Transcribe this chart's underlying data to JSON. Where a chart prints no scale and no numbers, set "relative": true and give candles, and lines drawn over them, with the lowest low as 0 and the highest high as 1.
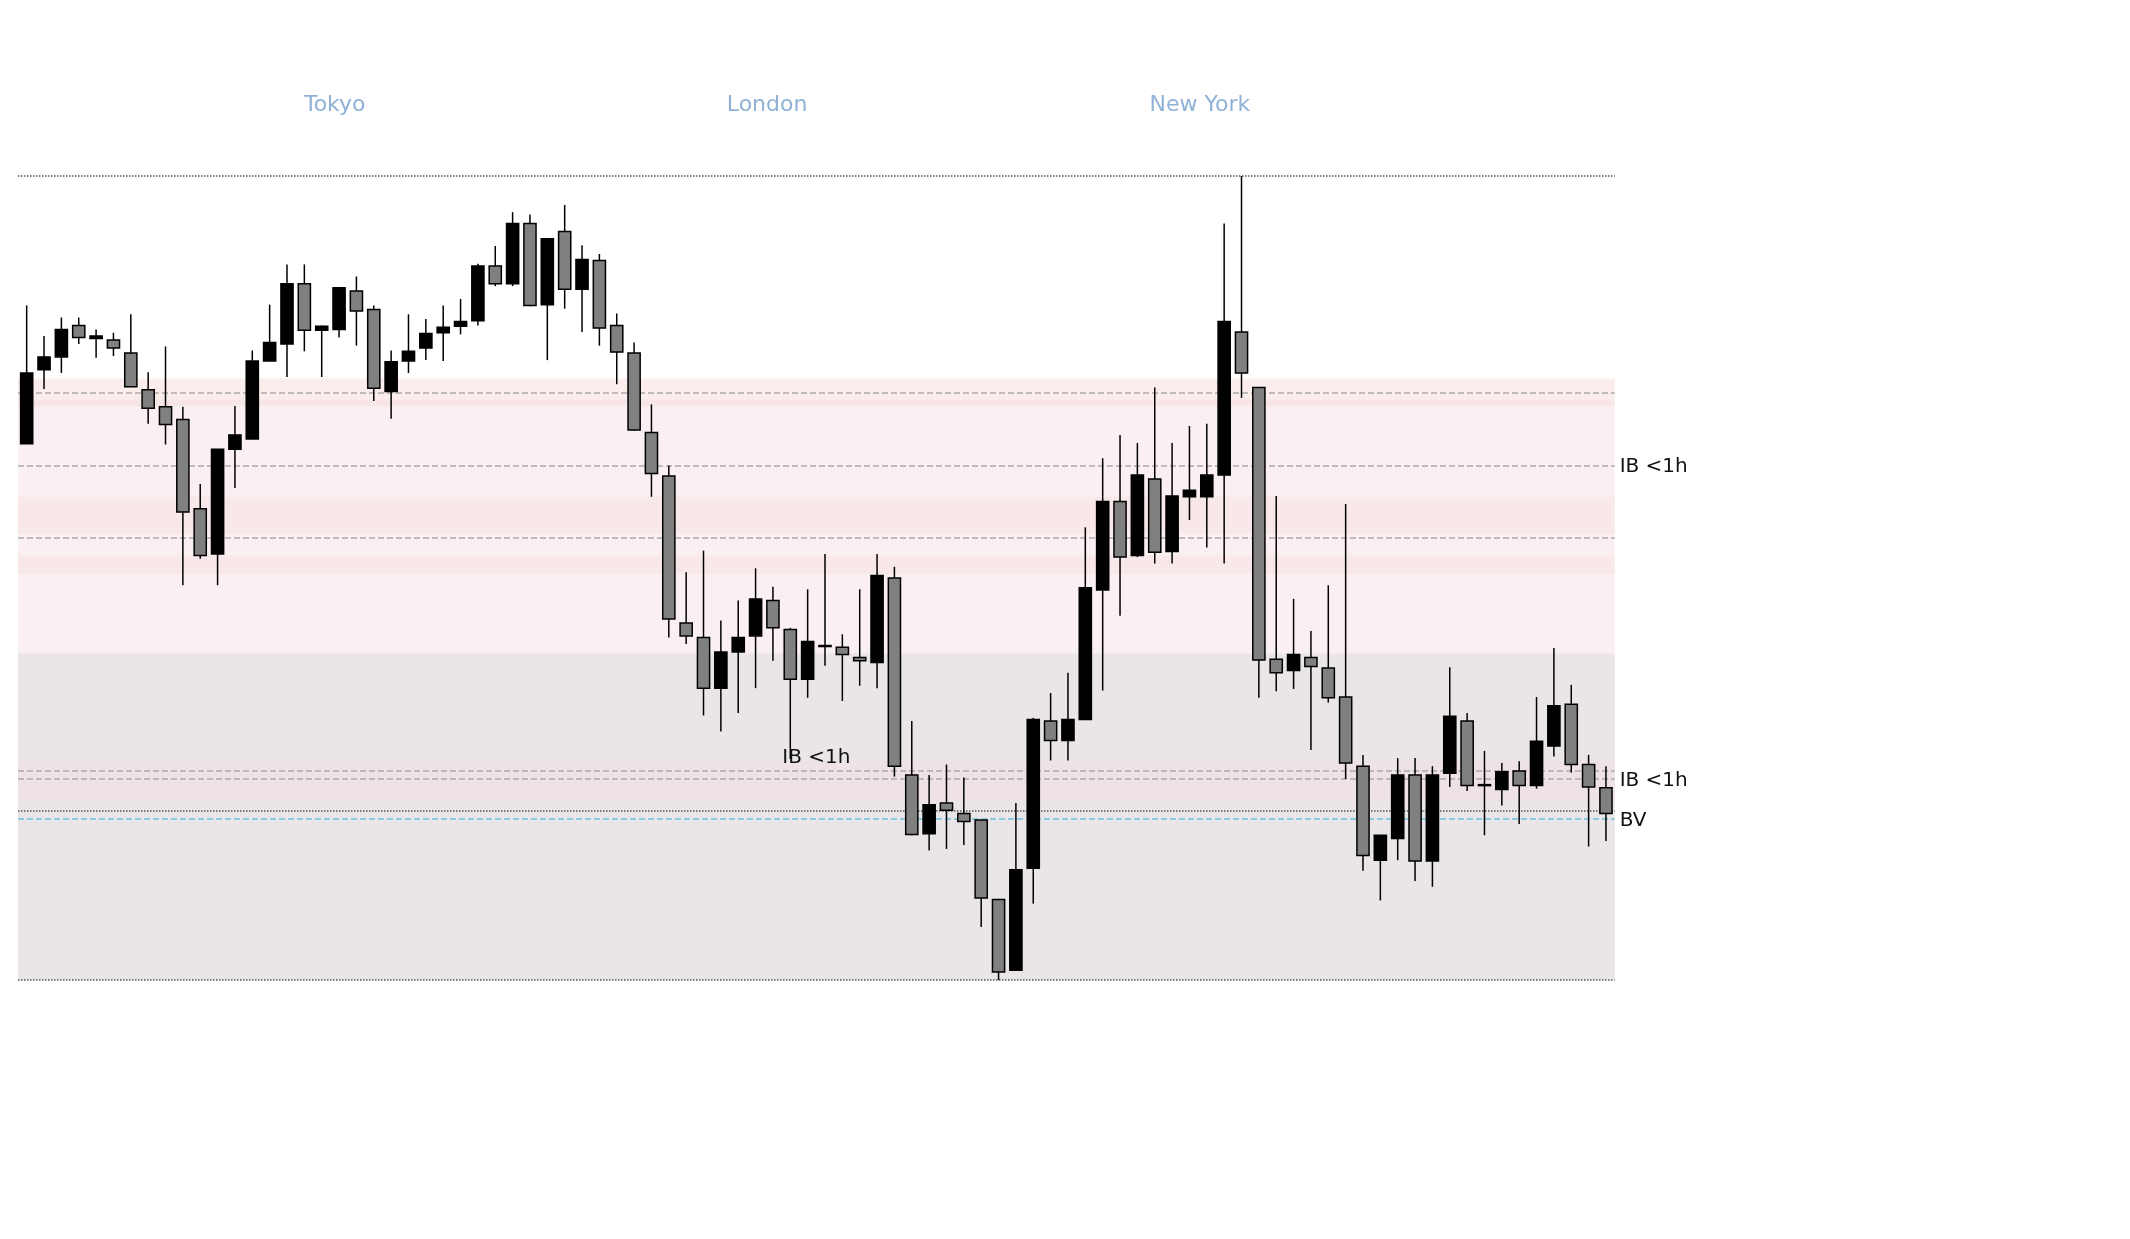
{
  "chart_data": {
    "type": "candlestick",
    "relative": true,
    "categories": [
      null,
      null,
      null,
      null,
      null,
      null,
      null,
      null,
      null,
      null,
      null,
      null,
      null,
      null,
      null,
      null,
      null,
      null,
      null,
      null,
      null,
      null,
      null,
      null,
      null,
      null,
      null,
      null,
      null,
      null,
      null,
      null,
      null,
      null,
      null,
      null,
      null,
      null,
      null,
      null,
      null,
      null,
      null,
      null,
      null,
      null,
      null,
      null,
      null,
      null,
      null,
      null,
      null,
      null,
      null,
      null,
      null,
      null,
      null,
      null,
      null,
      null,
      null,
      null,
      null,
      null,
      null,
      null,
      null,
      null,
      null,
      null,
      null,
      null,
      null,
      null,
      null,
      null,
      null,
      null,
      null,
      null,
      null,
      null,
      null,
      null,
      null,
      null,
      null,
      null,
      null,
      null
    ],
    "ohlc": [
      [
        0.667,
        0.839,
        0.667,
        0.755
      ],
      [
        0.759,
        0.801,
        0.735,
        0.775
      ],
      [
        0.775,
        0.824,
        0.755,
        0.809
      ],
      [
        0.814,
        0.824,
        0.791,
        0.799
      ],
      [
        0.798,
        0.809,
        0.774,
        0.801
      ],
      [
        0.796,
        0.805,
        0.776,
        0.786
      ],
      [
        0.78,
        0.828,
        0.738,
        0.738
      ],
      [
        0.734,
        0.756,
        0.692,
        0.711
      ],
      [
        0.713,
        0.788,
        0.666,
        0.691
      ],
      [
        0.697,
        0.713,
        0.491,
        0.582
      ],
      [
        0.586,
        0.617,
        0.524,
        0.528
      ],
      [
        0.53,
        0.66,
        0.491,
        0.66
      ],
      [
        0.66,
        0.714,
        0.612,
        0.678
      ],
      [
        0.673,
        0.783,
        0.673,
        0.77
      ],
      [
        0.77,
        0.84,
        0.77,
        0.793
      ],
      [
        0.791,
        0.89,
        0.75,
        0.866
      ],
      [
        0.866,
        0.89,
        0.782,
        0.808
      ],
      [
        0.808,
        0.814,
        0.75,
        0.813
      ],
      [
        0.809,
        0.861,
        0.799,
        0.861
      ],
      [
        0.857,
        0.875,
        0.789,
        0.832
      ],
      [
        0.834,
        0.839,
        0.72,
        0.736
      ],
      [
        0.732,
        0.783,
        0.698,
        0.769
      ],
      [
        0.77,
        0.828,
        0.755,
        0.782
      ],
      [
        0.786,
        0.822,
        0.771,
        0.804
      ],
      [
        0.805,
        0.839,
        0.77,
        0.812
      ],
      [
        0.813,
        0.847,
        0.803,
        0.819
      ],
      [
        0.82,
        0.891,
        0.814,
        0.888
      ],
      [
        0.888,
        0.913,
        0.863,
        0.866
      ],
      [
        0.866,
        0.955,
        0.863,
        0.941
      ],
      [
        0.941,
        0.952,
        0.838,
        0.839
      ],
      [
        0.84,
        0.922,
        0.771,
        0.922
      ],
      [
        0.931,
        0.964,
        0.835,
        0.859
      ],
      [
        0.859,
        0.914,
        0.806,
        0.896
      ],
      [
        0.895,
        0.903,
        0.789,
        0.811
      ],
      [
        0.814,
        0.829,
        0.741,
        0.781
      ],
      [
        0.78,
        0.793,
        0.683,
        0.684
      ],
      [
        0.681,
        0.716,
        0.601,
        0.63
      ],
      [
        0.627,
        0.64,
        0.426,
        0.449
      ],
      [
        0.444,
        0.507,
        0.418,
        0.428
      ],
      [
        0.426,
        0.534,
        0.329,
        0.363
      ],
      [
        0.363,
        0.447,
        0.309,
        0.408
      ],
      [
        0.408,
        0.472,
        0.332,
        0.426
      ],
      [
        0.428,
        0.512,
        0.363,
        0.474
      ],
      [
        0.472,
        0.489,
        0.397,
        0.438
      ],
      [
        0.436,
        0.438,
        0.275,
        0.374
      ],
      [
        0.374,
        0.486,
        0.351,
        0.421
      ],
      [
        0.415,
        0.53,
        0.391,
        0.416
      ],
      [
        0.414,
        0.43,
        0.347,
        0.405
      ],
      [
        0.401,
        0.486,
        0.366,
        0.397
      ],
      [
        0.395,
        0.53,
        0.363,
        0.503
      ],
      [
        0.5,
        0.514,
        0.253,
        0.266
      ],
      [
        0.255,
        0.322,
        0.18,
        0.181
      ],
      [
        0.182,
        0.255,
        0.161,
        0.218
      ],
      [
        0.22,
        0.268,
        0.163,
        0.211
      ],
      [
        0.207,
        0.252,
        0.168,
        0.197
      ],
      [
        0.199,
        0.199,
        0.066,
        0.102
      ],
      [
        0.1,
        0.1,
        0,
        0.01
      ],
      [
        0.012,
        0.22,
        0.012,
        0.137
      ],
      [
        0.139,
        0.326,
        0.095,
        0.324
      ],
      [
        0.322,
        0.357,
        0.273,
        0.298
      ],
      [
        0.298,
        0.382,
        0.273,
        0.324
      ],
      [
        0.324,
        0.563,
        0.324,
        0.488
      ],
      [
        0.485,
        0.649,
        0.36,
        0.595
      ],
      [
        0.595,
        0.678,
        0.453,
        0.526
      ],
      [
        0.528,
        0.668,
        0.526,
        0.628
      ],
      [
        0.623,
        0.737,
        0.518,
        0.532
      ],
      [
        0.533,
        0.668,
        0.518,
        0.602
      ],
      [
        0.601,
        0.689,
        0.572,
        0.609
      ],
      [
        0.601,
        0.692,
        0.538,
        0.628
      ],
      [
        0.628,
        0.941,
        0.518,
        0.819
      ],
      [
        0.806,
        1,
        0.724,
        0.755
      ],
      [
        0.737,
        0.737,
        0.351,
        0.398
      ],
      [
        0.399,
        0.602,
        0.359,
        0.382
      ],
      [
        0.385,
        0.474,
        0.362,
        0.405
      ],
      [
        0.401,
        0.434,
        0.286,
        0.39
      ],
      [
        0.388,
        0.491,
        0.345,
        0.351
      ],
      [
        0.352,
        0.592,
        0.25,
        0.27
      ],
      [
        0.266,
        0.28,
        0.136,
        0.155
      ],
      [
        0.149,
        0.18,
        0.099,
        0.18
      ],
      [
        0.176,
        0.276,
        0.149,
        0.255
      ],
      [
        0.255,
        0.276,
        0.123,
        0.148
      ],
      [
        0.148,
        0.266,
        0.116,
        0.255
      ],
      [
        0.257,
        0.389,
        0.24,
        0.328
      ],
      [
        0.322,
        0.332,
        0.235,
        0.242
      ],
      [
        0.242,
        0.285,
        0.18,
        0.243
      ],
      [
        0.237,
        0.27,
        0.217,
        0.259
      ],
      [
        0.26,
        0.272,
        0.194,
        0.242
      ],
      [
        0.242,
        0.352,
        0.238,
        0.297
      ],
      [
        0.291,
        0.413,
        0.278,
        0.341
      ],
      [
        0.343,
        0.367,
        0.258,
        0.268
      ],
      [
        0.268,
        0.28,
        0.166,
        0.24
      ],
      [
        0.239,
        0.266,
        0.173,
        0.207
      ]
    ],
    "bands": [
      {
        "axis": "y",
        "from": 0,
        "to": 0.528,
        "color": "#f6dde1"
      },
      {
        "axis": "y",
        "from": 0,
        "to": 0.406,
        "color": "#d3d7e0"
      },
      {
        "axis": "y",
        "from": 0.505,
        "to": 0.601,
        "color": "#f6dde1"
      },
      {
        "axis": "y",
        "from": 0.714,
        "to": 0.748,
        "color": "#f3d6d2"
      },
      {
        "axis": "y",
        "from": 0.555,
        "to": 0.722,
        "color": "#f6dde1"
      },
      {
        "axis": "y",
        "from": 0.222,
        "to": 0.272,
        "color": "#f6dde1"
      }
    ],
    "ref_lines": [
      {
        "axis": "y",
        "value": 1,
        "line_style": "dotted",
        "color": "#555555"
      },
      {
        "axis": "y",
        "value": 0.207,
        "line_style": "dotted",
        "color": "#555555"
      },
      {
        "axis": "y",
        "value": 0,
        "line_style": "dotted",
        "color": "#555555"
      },
      {
        "axis": "y",
        "value": 0.26,
        "label": "IB <1h",
        "line_style": "dashed",
        "color": "#aaaaaa"
      },
      {
        "axis": "y",
        "value": 0.199,
        "label": "BV",
        "line_style": "dashed",
        "color": "#6cc4d8"
      },
      {
        "axis": "y",
        "value": 0.553,
        "line_style": "dashed",
        "color": "#aaaaaa"
      },
      {
        "axis": "y",
        "value": 0.732,
        "line_style": "dashed",
        "color": "#aaaaaa"
      },
      {
        "axis": "y",
        "value": 0.638,
        "label": "IB <1h",
        "line_style": "dashed",
        "color": "#aaaaaa"
      },
      {
        "axis": "y",
        "value": 0.247,
        "label": "IB <1h",
        "line_style": "dashed",
        "color": "#aaaaaa"
      }
    ],
    "annotations": [
      "Tokyo",
      "London",
      "New York"
    ]
  }
}
